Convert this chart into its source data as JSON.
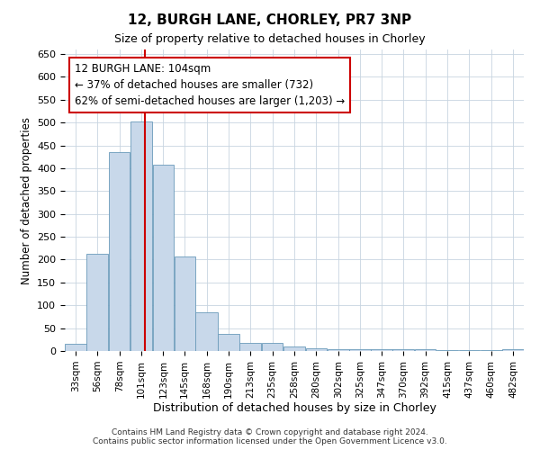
{
  "title_line1": "12, BURGH LANE, CHORLEY, PR7 3NP",
  "title_line2": "Size of property relative to detached houses in Chorley",
  "xlabel": "Distribution of detached houses by size in Chorley",
  "ylabel": "Number of detached properties",
  "footer_line1": "Contains HM Land Registry data © Crown copyright and database right 2024.",
  "footer_line2": "Contains public sector information licensed under the Open Government Licence v3.0.",
  "annotation_line1": "12 BURGH LANE: 104sqm",
  "annotation_line2": "← 37% of detached houses are smaller (732)",
  "annotation_line3": "62% of semi-detached houses are larger (1,203) →",
  "bar_color": "#c8d8ea",
  "bar_edge_color": "#6a9aba",
  "red_line_x": 104,
  "red_line_color": "#cc0000",
  "categories": [
    "33sqm",
    "56sqm",
    "78sqm",
    "101sqm",
    "123sqm",
    "145sqm",
    "168sqm",
    "190sqm",
    "213sqm",
    "235sqm",
    "258sqm",
    "280sqm",
    "302sqm",
    "325sqm",
    "347sqm",
    "370sqm",
    "392sqm",
    "415sqm",
    "437sqm",
    "460sqm",
    "482sqm"
  ],
  "bin_edges": [
    22,
    44,
    67,
    89,
    112,
    134,
    156,
    179,
    201,
    224,
    246,
    269,
    291,
    314,
    336,
    358,
    381,
    403,
    426,
    448,
    471,
    493
  ],
  "values": [
    15,
    213,
    435,
    503,
    408,
    207,
    84,
    38,
    18,
    18,
    10,
    5,
    4,
    4,
    4,
    4,
    4,
    1,
    1,
    1,
    4
  ],
  "ylim": [
    0,
    660
  ],
  "yticks": [
    0,
    50,
    100,
    150,
    200,
    250,
    300,
    350,
    400,
    450,
    500,
    550,
    600,
    650
  ],
  "background_color": "#ffffff",
  "grid_color": "#c8d4e0",
  "annotation_box_color": "#ffffff",
  "annotation_box_edge": "#cc0000",
  "fig_width": 6.0,
  "fig_height": 5.0,
  "dpi": 100
}
